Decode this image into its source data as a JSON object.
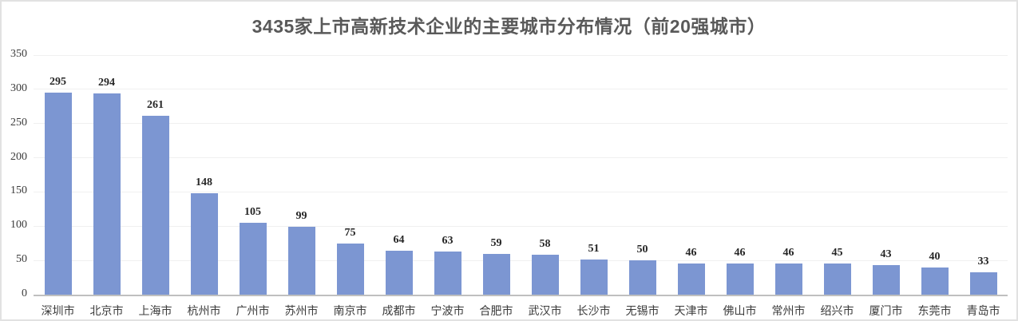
{
  "page": {
    "background": "#ffffff",
    "frame_border_color": "#e2e2e2"
  },
  "chart_data": {
    "type": "bar",
    "title": "3435家上市高新技术企业的主要城市分布情况（前20强城市）",
    "categories": [
      "深圳市",
      "北京市",
      "上海市",
      "杭州市",
      "广州市",
      "苏州市",
      "南京市",
      "成都市",
      "宁波市",
      "合肥市",
      "武汉市",
      "长沙市",
      "无锡市",
      "天津市",
      "佛山市",
      "常州市",
      "绍兴市",
      "厦门市",
      "东莞市",
      "青岛市"
    ],
    "values": [
      295,
      294,
      261,
      148,
      105,
      99,
      75,
      64,
      63,
      59,
      58,
      51,
      50,
      46,
      46,
      46,
      45,
      43,
      40,
      33
    ],
    "xlabel": "",
    "ylabel": "",
    "ylim": [
      0,
      350
    ],
    "yticks": [
      0,
      50,
      100,
      150,
      200,
      250,
      300,
      350
    ],
    "grid": true,
    "legend_position": "none",
    "data_labels": true,
    "colors": {
      "bar": "#7c96d2",
      "title": "#595959",
      "gridline": "#f0f0f0",
      "axis_line": "#bfbfbf",
      "data_label": "#262626",
      "tick_label": "#3b3b3b"
    }
  }
}
